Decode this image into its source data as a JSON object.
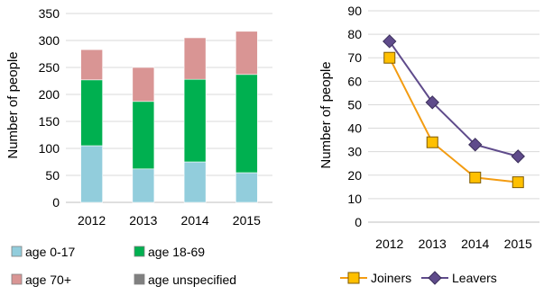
{
  "colors": {
    "age_0_17": "#92CDDC",
    "age_18_69": "#00B050",
    "age_70_plus": "#D99594",
    "age_unspecified": "#808080",
    "joiners": "#F39C12",
    "joiners_marker": "#FFC000",
    "leavers": "#5F4B8B",
    "gridline": "#D9D9D9",
    "axis": "#BFBFBF"
  },
  "chart_data": [
    {
      "type": "bar",
      "stacked": true,
      "categories": [
        "2012",
        "2013",
        "2014",
        "2015"
      ],
      "series": [
        {
          "name": "age 0-17",
          "values": [
            105,
            62,
            75,
            55
          ]
        },
        {
          "name": "age 18-69",
          "values": [
            122,
            125,
            153,
            182
          ]
        },
        {
          "name": "age 70+",
          "values": [
            56,
            63,
            77,
            80
          ]
        },
        {
          "name": "age unspecified",
          "values": [
            0,
            0,
            0,
            0
          ]
        }
      ],
      "ylabel": "Number of people",
      "ylim": [
        0,
        350
      ],
      "yticks": [
        0,
        50,
        100,
        150,
        200,
        250,
        300,
        350
      ],
      "grid": true,
      "legend": "bottom"
    },
    {
      "type": "line",
      "categories": [
        "2012",
        "2013",
        "2014",
        "2015"
      ],
      "series": [
        {
          "name": "Joiners",
          "values": [
            70,
            34,
            19,
            17
          ]
        },
        {
          "name": "Leavers",
          "values": [
            77,
            51,
            33,
            28
          ]
        }
      ],
      "ylabel": "Number of people",
      "ylim": [
        0,
        90
      ],
      "yticks": [
        0,
        10,
        20,
        30,
        40,
        50,
        60,
        70,
        80,
        90
      ],
      "grid": true,
      "legend": "bottom"
    }
  ]
}
